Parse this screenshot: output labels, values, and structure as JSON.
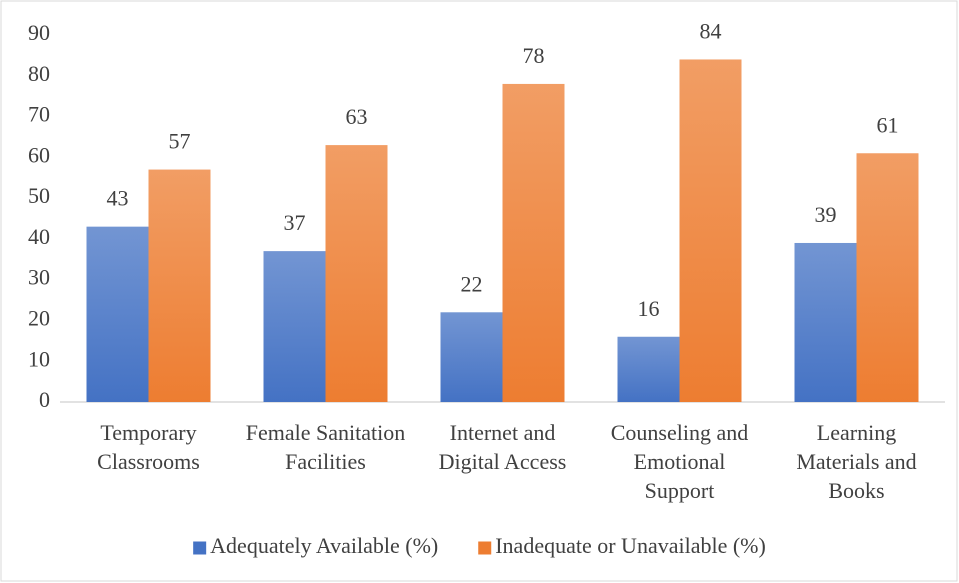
{
  "chart_data": {
    "type": "bar",
    "categories": [
      "Temporary Classrooms",
      "Female Sanitation Facilities",
      "Internet and Digital Access",
      "Counseling and Emotional Support",
      "Learning Materials and Books"
    ],
    "series": [
      {
        "name": "Adequately Available (%)",
        "color": "#4472c4",
        "values": [
          43,
          37,
          22,
          16,
          39
        ]
      },
      {
        "name": "Inadequate or Unavailable (%)",
        "color": "#ed7d31",
        "values": [
          57,
          63,
          78,
          84,
          61
        ]
      }
    ],
    "ylim": [
      0,
      90
    ],
    "yticks": [
      0,
      10,
      20,
      30,
      40,
      50,
      60,
      70,
      80,
      90
    ],
    "grid": false,
    "legend": "bottom"
  }
}
